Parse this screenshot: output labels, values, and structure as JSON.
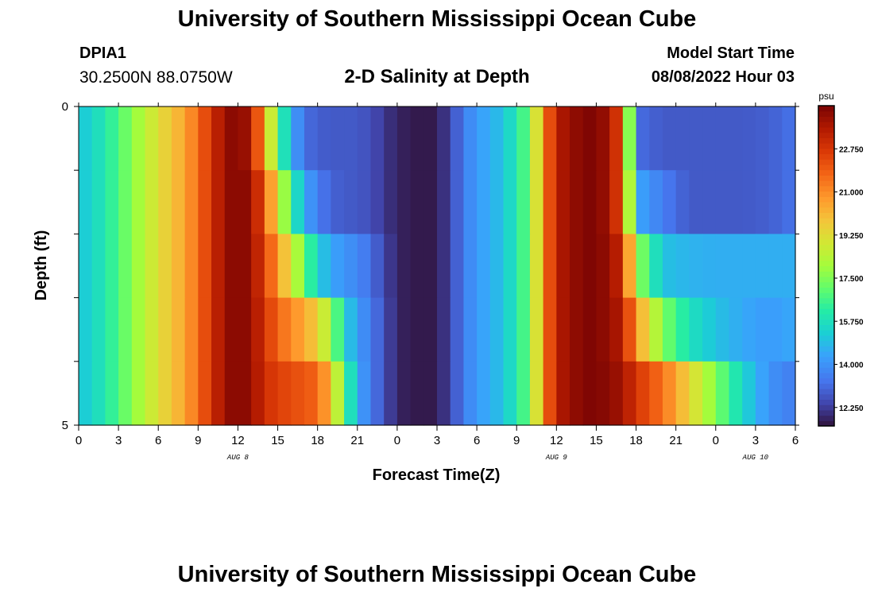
{
  "header": {
    "title": "University of Southern Mississippi Ocean Cube",
    "station_id": "DPIA1",
    "coordinates": "30.2500N  88.0750W",
    "plot_title": "2-D Salinity at Depth",
    "model_start_label": "Model Start Time",
    "model_start_value": "08/08/2022 Hour 03"
  },
  "footer": {
    "title": "University of Southern Mississippi Ocean Cube"
  },
  "chart_data": {
    "type": "heatmap",
    "title": "2-D Salinity at Depth",
    "xlabel": "Forecast Time(Z)",
    "ylabel": "Depth (ft)",
    "x_tick_labels": [
      "0",
      "3",
      "6",
      "9",
      "12",
      "15",
      "18",
      "21",
      "0",
      "3",
      "6",
      "9",
      "12",
      "15",
      "18",
      "21",
      "0",
      "3",
      "6"
    ],
    "x_range_hours": [
      0,
      54
    ],
    "date_labels": [
      {
        "text": "AUG 8",
        "hour": 12
      },
      {
        "text": "AUG 9",
        "hour": 36
      },
      {
        "text": "AUG 10",
        "hour": 51
      }
    ],
    "y_tick_labels": [
      "0",
      "5"
    ],
    "y_range_ft": [
      0,
      5
    ],
    "depth_levels_ft": [
      0.5,
      1.5,
      2.5,
      3.5,
      4.5
    ],
    "colorbar": {
      "unit": "psu",
      "range": [
        11.5,
        24.5
      ],
      "tick_labels": [
        "22.750",
        "21.000",
        "19.250",
        "17.500",
        "15.750",
        "14.000",
        "12.250"
      ],
      "tick_values": [
        22.75,
        21.0,
        19.25,
        17.5,
        15.75,
        14.0,
        12.25
      ]
    },
    "salinity_keyframes_psu": {
      "hours": [
        0,
        2,
        4,
        6,
        8,
        10,
        11,
        12,
        13,
        14,
        15,
        16,
        17,
        18,
        19,
        20,
        21,
        22,
        24,
        26,
        27,
        28,
        29,
        30,
        32,
        34,
        35,
        36,
        38,
        39,
        40,
        41,
        42,
        44,
        46,
        48,
        50,
        52,
        54
      ],
      "row_0.5": [
        15.0,
        16.0,
        17.6,
        19.2,
        20.5,
        22.8,
        24.0,
        24.4,
        23.6,
        20.5,
        17.0,
        14.6,
        13.2,
        12.9,
        12.8,
        12.8,
        12.8,
        12.6,
        11.8,
        11.6,
        11.7,
        12.4,
        13.5,
        14.2,
        15.0,
        17.2,
        21.0,
        23.5,
        24.4,
        24.4,
        23.8,
        22.0,
        13.2,
        12.8,
        12.8,
        12.8,
        12.8,
        12.9,
        13.3
      ],
      "row_1.5": [
        15.0,
        16.0,
        17.6,
        19.2,
        20.5,
        22.8,
        24.0,
        24.4,
        24.0,
        22.0,
        19.2,
        16.5,
        14.5,
        13.5,
        13.0,
        12.8,
        12.8,
        12.6,
        11.8,
        11.6,
        11.7,
        12.4,
        13.5,
        14.2,
        15.0,
        17.2,
        21.0,
        23.5,
        24.4,
        24.4,
        23.8,
        22.0,
        14.5,
        13.5,
        12.8,
        12.8,
        12.8,
        12.9,
        13.3
      ],
      "row_2.5": [
        15.0,
        16.0,
        17.6,
        19.2,
        20.5,
        22.8,
        24.0,
        24.4,
        24.0,
        22.5,
        20.8,
        19.0,
        17.2,
        15.3,
        14.5,
        14.0,
        13.8,
        13.2,
        11.8,
        11.6,
        11.7,
        12.4,
        13.5,
        14.2,
        15.0,
        17.2,
        21.0,
        23.5,
        24.4,
        24.4,
        24.0,
        23.0,
        18.0,
        15.0,
        14.7,
        14.6,
        14.6,
        14.6,
        14.6
      ],
      "row_3.5": [
        15.0,
        16.0,
        17.6,
        19.2,
        20.5,
        22.8,
        24.0,
        24.4,
        24.0,
        22.8,
        21.8,
        21.0,
        20.5,
        19.5,
        18.0,
        15.5,
        14.2,
        13.5,
        11.8,
        11.6,
        11.7,
        12.4,
        13.5,
        14.2,
        15.0,
        17.2,
        21.0,
        23.5,
        24.4,
        24.4,
        24.0,
        23.5,
        20.8,
        17.5,
        15.8,
        15.0,
        14.5,
        14.2,
        14.5
      ],
      "row_4.5": [
        15.0,
        16.0,
        17.6,
        19.2,
        20.5,
        22.8,
        24.0,
        24.4,
        24.0,
        23.0,
        22.5,
        22.3,
        22.0,
        21.8,
        20.0,
        17.0,
        14.5,
        13.5,
        11.8,
        11.6,
        11.7,
        12.4,
        13.5,
        14.2,
        15.0,
        17.2,
        21.0,
        23.5,
        24.4,
        24.4,
        24.2,
        23.8,
        22.8,
        21.5,
        19.5,
        17.5,
        15.5,
        14.0,
        13.5
      ]
    }
  }
}
